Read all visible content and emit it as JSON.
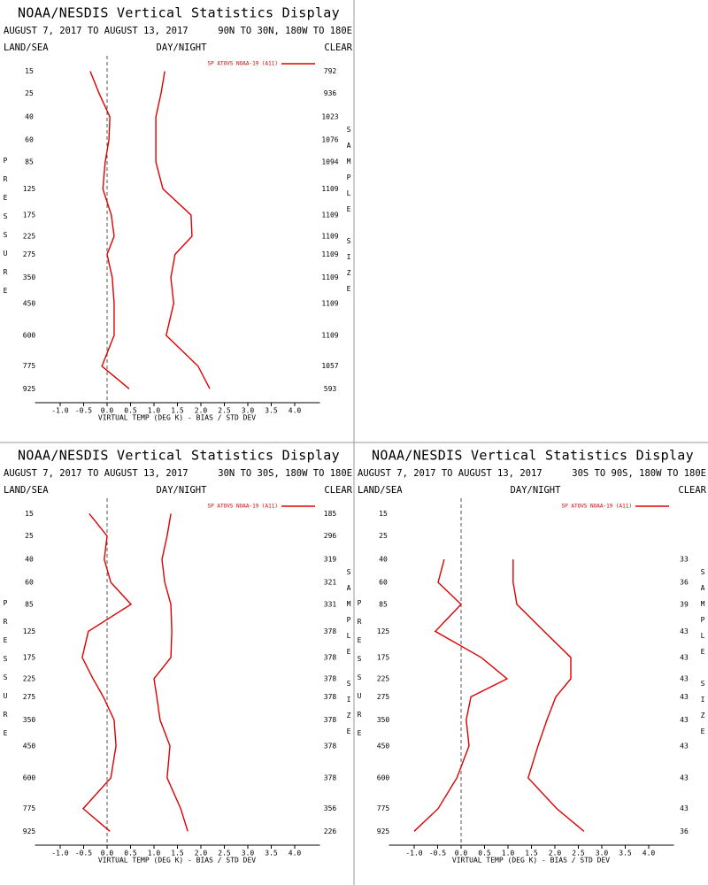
{
  "chart_data": [
    {
      "type": "line",
      "title": "NOAA/NESDIS Vertical Statistics Display",
      "date_range": "AUGUST 7, 2017 TO AUGUST 13, 2017",
      "region": "90N TO 30N, 180W TO 180E",
      "land_sea": "LAND/SEA",
      "day_night": "DAY/NIGHT",
      "clear": "CLEAR",
      "ylabel": "PRESSURE",
      "y2label": "SAMPLE SIZE",
      "xlabel": "VIRTUAL TEMP (DEG K) - BIAS / STD DEV",
      "xlim": [
        -1.5,
        4.5
      ],
      "xticks": [
        {
          "value": -1,
          "label": "-1.0"
        },
        -0.5,
        {
          "value": 0,
          "label": "0.0"
        },
        0.5,
        {
          "value": 1,
          "label": "1.0"
        },
        1.5,
        {
          "value": 2,
          "label": "2.0"
        },
        2.5,
        {
          "value": 3,
          "label": "3.0"
        },
        3.5,
        {
          "value": 4,
          "label": "4.0"
        }
      ],
      "ylim": [
        1000,
        10
      ],
      "yticks": [
        15,
        25,
        40,
        60,
        85,
        125,
        175,
        225,
        275,
        350,
        450,
        600,
        775,
        925
      ],
      "y": [
        15,
        25,
        40,
        60,
        85,
        125,
        175,
        225,
        275,
        350,
        450,
        600,
        775,
        925
      ],
      "series": [
        {
          "name": "SP ATOVS NOAA-19 (A11)",
          "color": "#dd0000",
          "values": [
            -0.36,
            -0.17,
            0.06,
            0.04,
            -0.04,
            -0.09,
            0.09,
            0.15,
            0.0,
            0.11,
            0.15,
            0.15,
            -0.11,
            0.47
          ],
          "std_dev": [
            1.23,
            1.15,
            1.04,
            1.04,
            1.04,
            1.19,
            1.79,
            1.81,
            1.45,
            1.36,
            1.42,
            1.26,
            1.94,
            2.19
          ]
        }
      ],
      "sample_sizes": [
        792,
        936,
        1023,
        1076,
        1094,
        1109,
        1109,
        1109,
        1109,
        1109,
        1109,
        1109,
        1057,
        593
      ]
    },
    {
      "type": "line",
      "title": "NOAA/NESDIS Vertical Statistics Display",
      "date_range": "AUGUST 7, 2017 TO AUGUST 13, 2017",
      "region": "30N TO 30S, 180W TO 180E",
      "land_sea": "LAND/SEA",
      "day_night": "DAY/NIGHT",
      "clear": "CLEAR",
      "ylabel": "PRESSURE",
      "y2label": "SAMPLE SIZE",
      "xlabel": "VIRTUAL TEMP (DEG K) - BIAS / STD DEV",
      "xlim": [
        -1.5,
        4.5
      ],
      "xticks": [
        {
          "value": -1,
          "label": "-1.0"
        },
        -0.5,
        {
          "value": 0,
          "label": "0.0"
        },
        0.5,
        {
          "value": 1,
          "label": "1.0"
        },
        1.5,
        {
          "value": 2,
          "label": "2.0"
        },
        2.5,
        {
          "value": 3,
          "label": "3.0"
        },
        3.5,
        {
          "value": 4,
          "label": "4.0"
        }
      ],
      "ylim": [
        1000,
        10
      ],
      "yticks": [
        15,
        25,
        40,
        60,
        85,
        125,
        175,
        225,
        275,
        350,
        450,
        600,
        775,
        925
      ],
      "y": [
        15,
        25,
        40,
        60,
        85,
        125,
        175,
        225,
        275,
        350,
        450,
        600,
        775,
        925
      ],
      "series": [
        {
          "name": "SP ATOVS NOAA-19 (A11)",
          "color": "#dd0000",
          "values": [
            -0.38,
            0.0,
            -0.06,
            0.08,
            0.51,
            -0.4,
            -0.53,
            -0.3,
            -0.08,
            0.15,
            0.19,
            0.08,
            -0.51,
            0.06
          ],
          "std_dev": [
            1.36,
            1.28,
            1.17,
            1.23,
            1.36,
            1.38,
            1.36,
            1.0,
            1.06,
            1.13,
            1.34,
            1.28,
            1.57,
            1.72
          ]
        }
      ],
      "sample_sizes": [
        185,
        296,
        319,
        321,
        331,
        378,
        378,
        378,
        378,
        378,
        378,
        378,
        356,
        226
      ]
    },
    {
      "type": "line",
      "title": "NOAA/NESDIS Vertical Statistics Display",
      "date_range": "AUGUST 7, 2017 TO AUGUST 13, 2017",
      "region": "30S TO 90S, 180W TO 180E",
      "land_sea": "LAND/SEA",
      "day_night": "DAY/NIGHT",
      "clear": "CLEAR",
      "ylabel": "PRESSURE",
      "y2label": "SAMPLE SIZE",
      "xlabel": "VIRTUAL TEMP (DEG K) - BIAS / STD DEV",
      "xlim": [
        -1.5,
        4.5
      ],
      "xticks": [
        {
          "value": -1,
          "label": "-1.0"
        },
        -0.5,
        {
          "value": 0,
          "label": "0.0"
        },
        0.5,
        {
          "value": 1,
          "label": "1.0"
        },
        1.5,
        {
          "value": 2,
          "label": "2.0"
        },
        2.5,
        {
          "value": 3,
          "label": "3.0"
        },
        3.5,
        {
          "value": 4,
          "label": "4.0"
        }
      ],
      "ylim": [
        1000,
        10
      ],
      "yticks": [
        15,
        25,
        40,
        60,
        85,
        125,
        175,
        225,
        275,
        350,
        450,
        600,
        775,
        925
      ],
      "y": [
        15,
        25,
        40,
        60,
        85,
        125,
        175,
        225,
        275,
        350,
        450,
        600,
        775,
        925
      ],
      "series": [
        {
          "name": "SP ATOVS NOAA-19 (A11)",
          "color": "#dd0000",
          "values": [
            null,
            null,
            -0.36,
            -0.49,
            0.0,
            -0.55,
            0.43,
            0.98,
            0.21,
            0.11,
            0.17,
            -0.09,
            -0.49,
            -1.0
          ],
          "std_dev": [
            null,
            null,
            1.11,
            1.11,
            1.19,
            1.77,
            2.34,
            2.34,
            2.02,
            1.83,
            1.64,
            1.43,
            2.04,
            2.62
          ]
        }
      ],
      "sample_sizes": [
        null,
        null,
        33,
        36,
        39,
        43,
        43,
        43,
        43,
        43,
        43,
        43,
        43,
        36
      ]
    }
  ]
}
